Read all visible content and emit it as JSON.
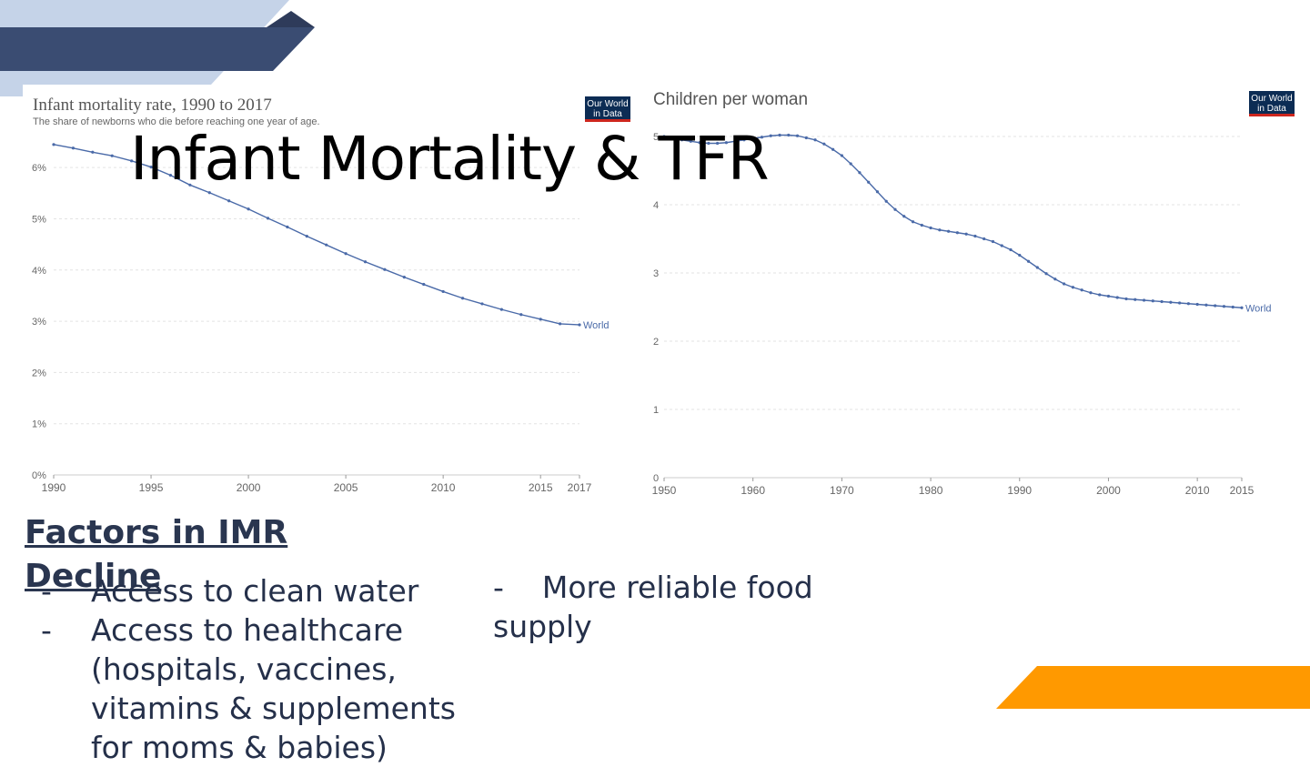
{
  "slide": {
    "title": "Infant Mortality & TFR",
    "factors_heading": "Factors in IMR Decline",
    "bullets": [
      "Access to clean water",
      "Access to healthcare (hospitals, vaccines, vitamins & supplements for moms & babies)"
    ],
    "right_bullet_dash": "-",
    "right_bullet": "More reliable food supply",
    "bullet_dash": "-"
  },
  "colors": {
    "dark_navy": "#3a4c72",
    "light_blue": "#c5d3e8",
    "orange": "#ff9900",
    "series": "#4a6aa8"
  },
  "logos": {
    "owid_line1": "Our World",
    "owid_line2": "in Data"
  },
  "chart_data": [
    {
      "type": "line",
      "title": "Infant mortality rate, 1990 to 2017",
      "subtitle": "The share of newborns who die before reaching one year of age.",
      "xlabel": "",
      "ylabel": "",
      "xlim": [
        1990,
        2017
      ],
      "ylim": [
        0,
        6.5
      ],
      "x_ticks": [
        "1990",
        "1995",
        "2000",
        "2005",
        "2010",
        "2015",
        "2017"
      ],
      "y_ticks": [
        "0%",
        "1%",
        "2%",
        "3%",
        "4%",
        "5%",
        "6%"
      ],
      "grid": true,
      "series": [
        {
          "name": "World",
          "x": [
            1990,
            1991,
            1992,
            1993,
            1994,
            1995,
            1996,
            1997,
            1998,
            1999,
            2000,
            2001,
            2002,
            2003,
            2004,
            2005,
            2006,
            2007,
            2008,
            2009,
            2010,
            2011,
            2012,
            2013,
            2014,
            2015,
            2016,
            2017
          ],
          "values": [
            6.45,
            6.38,
            6.3,
            6.23,
            6.13,
            6.01,
            5.85,
            5.66,
            5.51,
            5.35,
            5.19,
            5.01,
            4.84,
            4.66,
            4.49,
            4.32,
            4.16,
            4.01,
            3.86,
            3.72,
            3.58,
            3.45,
            3.34,
            3.23,
            3.13,
            3.04,
            2.95,
            2.93
          ]
        }
      ]
    },
    {
      "type": "line",
      "title": "Children per woman",
      "xlabel": "",
      "ylabel": "",
      "xlim": [
        1950,
        2015
      ],
      "ylim": [
        0,
        5
      ],
      "x_ticks": [
        "1950",
        "1960",
        "1970",
        "1980",
        "1990",
        "2000",
        "2010",
        "2015"
      ],
      "y_ticks": [
        "0",
        "1",
        "2",
        "3",
        "4",
        "5"
      ],
      "grid": true,
      "series": [
        {
          "name": "World",
          "x": [
            1950,
            1951,
            1952,
            1953,
            1954,
            1955,
            1956,
            1957,
            1958,
            1959,
            1960,
            1961,
            1962,
            1963,
            1964,
            1965,
            1966,
            1967,
            1968,
            1969,
            1970,
            1971,
            1972,
            1973,
            1974,
            1975,
            1976,
            1977,
            1978,
            1979,
            1980,
            1981,
            1982,
            1983,
            1984,
            1985,
            1986,
            1987,
            1988,
            1989,
            1990,
            1991,
            1992,
            1993,
            1994,
            1995,
            1996,
            1997,
            1998,
            1999,
            2000,
            2001,
            2002,
            2003,
            2004,
            2005,
            2006,
            2007,
            2008,
            2009,
            2010,
            2011,
            2012,
            2013,
            2014,
            2015
          ],
          "values": [
            5.0,
            4.98,
            4.95,
            4.93,
            4.91,
            4.9,
            4.9,
            4.91,
            4.93,
            4.95,
            4.97,
            4.99,
            5.01,
            5.02,
            5.02,
            5.01,
            4.98,
            4.95,
            4.89,
            4.81,
            4.72,
            4.6,
            4.47,
            4.33,
            4.19,
            4.05,
            3.93,
            3.83,
            3.75,
            3.7,
            3.66,
            3.63,
            3.61,
            3.59,
            3.57,
            3.54,
            3.5,
            3.46,
            3.4,
            3.34,
            3.26,
            3.17,
            3.08,
            2.99,
            2.91,
            2.84,
            2.79,
            2.75,
            2.71,
            2.68,
            2.66,
            2.64,
            2.62,
            2.61,
            2.6,
            2.59,
            2.58,
            2.57,
            2.56,
            2.55,
            2.54,
            2.53,
            2.52,
            2.51,
            2.5,
            2.49
          ]
        }
      ]
    }
  ]
}
